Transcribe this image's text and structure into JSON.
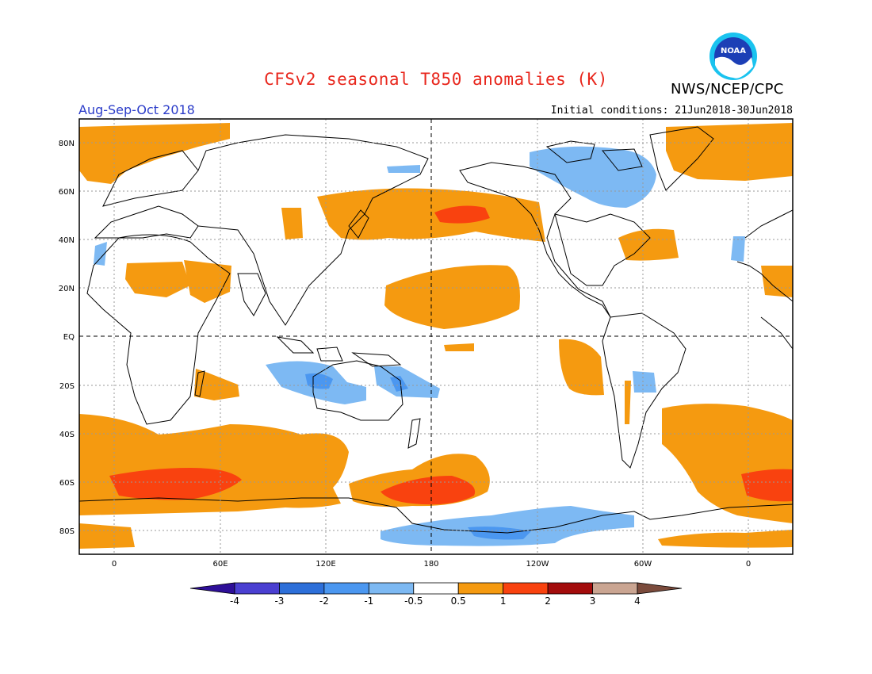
{
  "header": {
    "title": "CFSv2 seasonal T850 anomalies (K)",
    "org": "NWS/NCEP/CPC",
    "logo_text": "NOAA",
    "season": "Aug-Sep-Oct 2018",
    "init": "Initial conditions: 21Jun2018-30Jun2018"
  },
  "axes": {
    "lat_labels": [
      "80N",
      "60N",
      "40N",
      "20N",
      "EQ",
      "20S",
      "40S",
      "60S",
      "80S"
    ],
    "lon_labels": [
      "0",
      "60E",
      "120E",
      "180",
      "120W",
      "60W",
      "0"
    ]
  },
  "colorbar": {
    "labels": [
      "-4",
      "-3",
      "-2",
      "-1",
      "-0.5",
      "0.5",
      "1",
      "2",
      "3",
      "4"
    ],
    "colors": [
      "#2e0f98",
      "#4a3fd1",
      "#2d6fd9",
      "#4b97f0",
      "#7db9f3",
      "#ffffff",
      "#f59a10",
      "#f9420f",
      "#a30c0c",
      "#caa592",
      "#7b4b3c"
    ]
  },
  "chart_data": {
    "type": "heatmap",
    "title": "CFSv2 seasonal T850 anomalies (K)",
    "units": "K",
    "season": "Aug-Sep-Oct 2018",
    "initial_conditions": "21Jun2018-30Jun2018",
    "lon_range": [
      -20,
      380
    ],
    "lat_range": [
      -90,
      90
    ],
    "levels": [
      -4,
      -3,
      -2,
      -1,
      -0.5,
      0.5,
      1,
      2,
      3,
      4
    ],
    "regions": [
      {
        "name": "Southern Ocean south of Africa",
        "anomaly_level": "1 to 2, core above 1",
        "lon": [
          20,
          70
        ],
        "lat": [
          -65,
          -55
        ]
      },
      {
        "name": "Southern Ocean near dateline",
        "anomaly_level": "1 to 2",
        "lon": [
          160,
          210
        ],
        "lat": [
          -68,
          -58
        ]
      },
      {
        "name": "North Pacific",
        "anomaly_level": "0.5 to 1, core above 1",
        "lon": [
          140,
          220
        ],
        "lat": [
          30,
          60
        ]
      },
      {
        "name": "Subtropical Pacific",
        "anomaly_level": "0.5 to 1",
        "lon": [
          150,
          230
        ],
        "lat": [
          5,
          25
        ]
      },
      {
        "name": "Canadian Arctic",
        "anomaly_level": "-1 to -0.5",
        "lon": [
          240,
          295
        ],
        "lat": [
          55,
          80
        ]
      },
      {
        "name": "Indian Ocean / Indonesia",
        "anomaly_level": "-1 to -0.5, core below -1",
        "lon": [
          85,
          135
        ],
        "lat": [
          -25,
          -10
        ]
      },
      {
        "name": "Antarctic coast near 150W",
        "anomaly_level": "-1 to -0.5, core below -1",
        "lon": [
          165,
          280
        ],
        "lat": [
          -85,
          -72
        ]
      }
    ]
  }
}
